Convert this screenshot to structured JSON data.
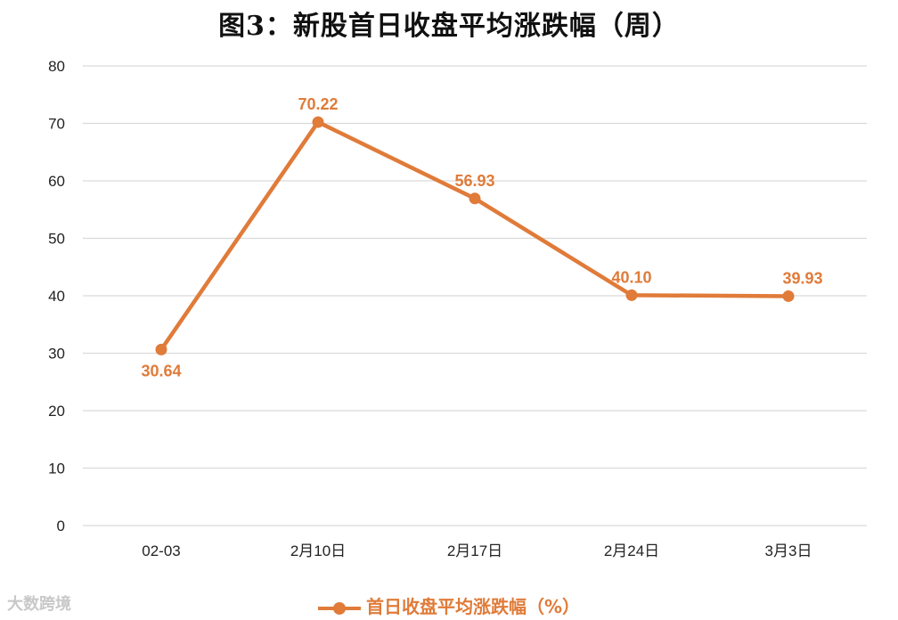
{
  "chart_data": {
    "type": "line",
    "title": "图3：新股首日收盘平均涨跌幅（周）",
    "categories": [
      "02-03",
      "2月10日",
      "2月17日",
      "2月24日",
      "3月3日"
    ],
    "series": [
      {
        "name": "首日收盘平均涨跌幅（%）",
        "values": [
          30.64,
          70.22,
          56.93,
          40.1,
          39.93
        ],
        "labels": [
          "30.64",
          "70.22",
          "56.93",
          "40.10",
          "39.93"
        ]
      }
    ],
    "ylim": [
      0,
      80
    ],
    "yticks": [
      0,
      10,
      20,
      30,
      40,
      50,
      60,
      70,
      80
    ],
    "grid": true,
    "legend": "bottom",
    "color": "#E07B39"
  },
  "watermark": "大数跨境"
}
